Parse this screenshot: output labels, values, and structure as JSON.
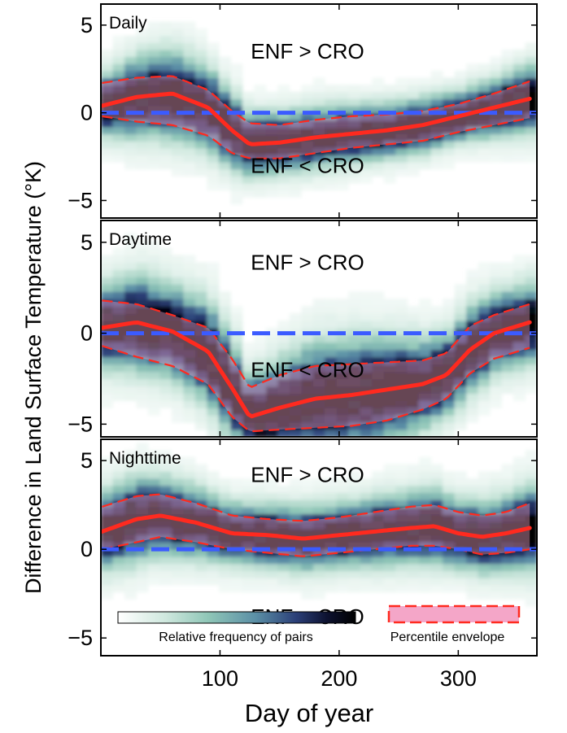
{
  "figure": {
    "ylabel": "Difference in Land Surface Temperature (°K)",
    "xlabel": "Day of year",
    "xticks": [
      100,
      200,
      300
    ],
    "colorbar_label": "Relative frequency of pairs",
    "envelope_label": "Percentile envelope"
  },
  "colors": {
    "median": "#ff2a1f",
    "envelope_edge": "#ff2a1f",
    "envelope_fill": "#f4a6c8",
    "zero_line": "#3b5bff",
    "colormap": [
      "#ffffff",
      "#cfe8de",
      "#8fc6b7",
      "#5b8fa6",
      "#2b3f78",
      "#0d1230",
      "#000000"
    ]
  },
  "chart_data": [
    {
      "type": "heatmap",
      "title": "Daily",
      "annotations": [
        "ENF > CRO",
        "ENF < CRO"
      ],
      "xlim": [
        0,
        366
      ],
      "ylim": [
        -6,
        6.2
      ],
      "yticks": [
        -5,
        0,
        5
      ],
      "zero_line": 0,
      "x": [
        1,
        30,
        60,
        90,
        110,
        125,
        150,
        180,
        210,
        240,
        270,
        300,
        330,
        360
      ],
      "median": [
        0.4,
        0.9,
        1.1,
        0.3,
        -1.0,
        -1.8,
        -1.7,
        -1.4,
        -1.2,
        -1.0,
        -0.7,
        -0.2,
        0.3,
        0.8
      ],
      "upper": [
        1.7,
        2.0,
        2.1,
        1.3,
        0.1,
        -0.6,
        -0.7,
        -0.4,
        -0.2,
        -0.1,
        0.1,
        0.5,
        1.1,
        1.8
      ],
      "lower": [
        -0.2,
        -0.5,
        -0.7,
        -1.3,
        -2.3,
        -2.6,
        -2.6,
        -2.3,
        -2.0,
        -1.8,
        -1.6,
        -1.1,
        -0.7,
        -0.3
      ]
    },
    {
      "type": "heatmap",
      "title": "Daytime",
      "annotations": [
        "ENF > CRO",
        "ENF < CRO"
      ],
      "xlim": [
        0,
        366
      ],
      "ylim": [
        -5.7,
        6.2
      ],
      "yticks": [
        -5,
        0,
        5
      ],
      "zero_line": 0,
      "x": [
        1,
        30,
        60,
        90,
        110,
        125,
        150,
        180,
        210,
        240,
        270,
        290,
        310,
        330,
        360
      ],
      "median": [
        0.3,
        0.6,
        0.1,
        -1.0,
        -3.0,
        -4.6,
        -4.1,
        -3.6,
        -3.4,
        -3.1,
        -2.8,
        -2.3,
        -0.9,
        0.0,
        0.6
      ],
      "upper": [
        1.8,
        1.6,
        1.0,
        0.3,
        -1.4,
        -3.0,
        -2.3,
        -1.8,
        -1.7,
        -1.6,
        -1.5,
        -1.1,
        0.4,
        1.0,
        1.6
      ],
      "lower": [
        -0.7,
        -1.3,
        -1.8,
        -2.8,
        -4.6,
        -5.4,
        -5.3,
        -5.2,
        -5.1,
        -4.8,
        -4.2,
        -3.6,
        -2.2,
        -1.4,
        -0.8
      ]
    },
    {
      "type": "heatmap",
      "title": "Nighttime",
      "annotations": [
        "ENF > CRO",
        "ENF < CRO"
      ],
      "xlim": [
        0,
        366
      ],
      "ylim": [
        -6,
        6.2
      ],
      "yticks": [
        -5,
        0,
        5
      ],
      "zero_line": 0,
      "x": [
        1,
        30,
        50,
        80,
        110,
        140,
        170,
        200,
        230,
        260,
        280,
        300,
        320,
        340,
        360
      ],
      "median": [
        1.0,
        1.7,
        1.9,
        1.5,
        0.9,
        0.8,
        0.6,
        0.8,
        1.0,
        1.2,
        1.3,
        0.9,
        0.7,
        0.9,
        1.2
      ],
      "upper": [
        2.4,
        3.0,
        3.1,
        2.6,
        1.9,
        1.7,
        1.6,
        1.8,
        2.1,
        2.4,
        2.5,
        2.1,
        1.9,
        2.1,
        2.6
      ],
      "lower": [
        0.0,
        0.4,
        0.7,
        0.4,
        0.0,
        -0.2,
        -0.4,
        -0.2,
        0.0,
        0.2,
        0.2,
        0.0,
        -0.3,
        -0.2,
        0.0
      ]
    }
  ]
}
